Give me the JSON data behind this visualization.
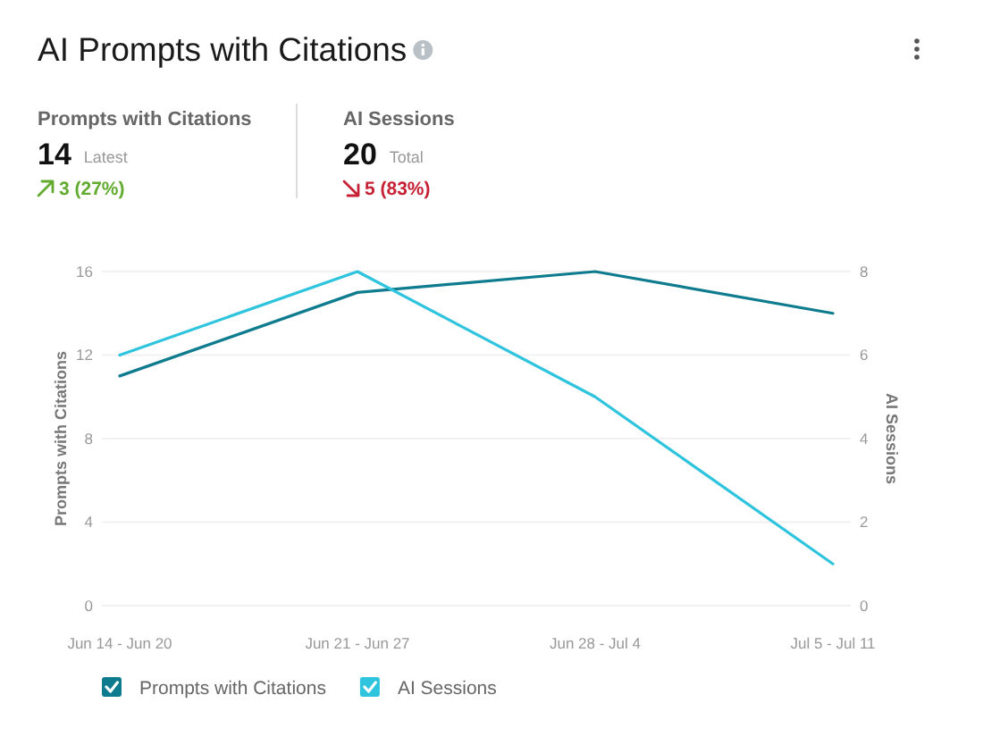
{
  "chart_data": [
    {
      "type": "other",
      "title": "AI Prompts with Citations",
      "annotations": [
        "Prompts with Citations",
        "14",
        "Latest",
        "3 (27%)",
        "AI Sessions",
        "20",
        "Total",
        "5 (83%)"
      ]
    },
    {
      "type": "line",
      "categories": [
        "Jun 14 - Jun 20",
        "Jun 21 - Jun 27",
        "Jun 28 - Jul 4",
        "Jul 5 - Jul 11"
      ],
      "series": [
        {
          "name": "Prompts with Citations",
          "color": "#0e7c8e",
          "values": [
            11,
            15,
            16,
            14
          ]
        },
        {
          "name": "AI Sessions",
          "color": "#2ec4de",
          "values": [
            6,
            8,
            5,
            1
          ],
          "axis": "y2"
        }
      ],
      "ylabel": "Prompts with Citations",
      "y2label": "AI Sessions",
      "ylim": [
        0,
        16
      ],
      "yticks": [
        0,
        4,
        8,
        12,
        16
      ],
      "y2lim": [
        0,
        8
      ],
      "y2ticks": [
        0,
        2,
        4,
        6,
        8
      ],
      "grid": "y",
      "legend": "bottom"
    }
  ]
}
